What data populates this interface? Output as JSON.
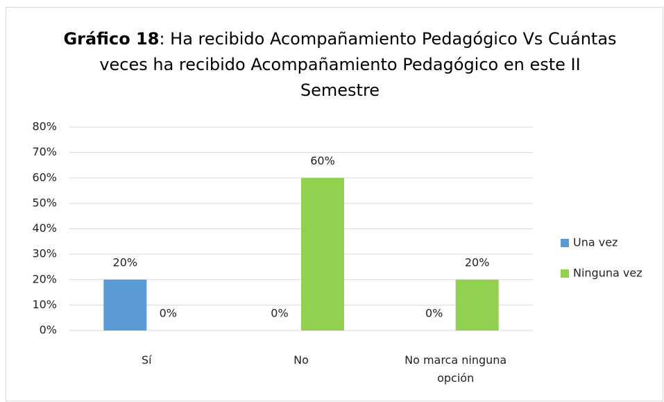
{
  "chart_data": {
    "type": "bar",
    "title": {
      "bold": "Gráfico 18",
      "text": ": Ha recibido Acompañamiento Pedagógico Vs Cuántas veces ha recibido Acompañamiento Pedagógico en este II Semestre"
    },
    "categories": [
      "Sí",
      "No",
      "No marca ninguna opción"
    ],
    "series": [
      {
        "name": "Una vez",
        "color": "#5b9bd5",
        "values": [
          20,
          0,
          0
        ],
        "value_labels": [
          "20%",
          "0%",
          "0%"
        ]
      },
      {
        "name": "Ninguna vez",
        "color": "#92d050",
        "values": [
          0,
          60,
          20
        ],
        "value_labels": [
          "0%",
          "60%",
          "20%"
        ]
      }
    ],
    "ylim": [
      0,
      80
    ],
    "yticks": [
      {
        "value": 0,
        "label": "0%"
      },
      {
        "value": 10,
        "label": "10%"
      },
      {
        "value": 20,
        "label": "20%"
      },
      {
        "value": 30,
        "label": "30%"
      },
      {
        "value": 40,
        "label": "40%"
      },
      {
        "value": 50,
        "label": "50%"
      },
      {
        "value": 60,
        "label": "60%"
      },
      {
        "value": 70,
        "label": "70%"
      },
      {
        "value": 80,
        "label": "80%"
      }
    ],
    "grid": true,
    "legend": "right"
  }
}
